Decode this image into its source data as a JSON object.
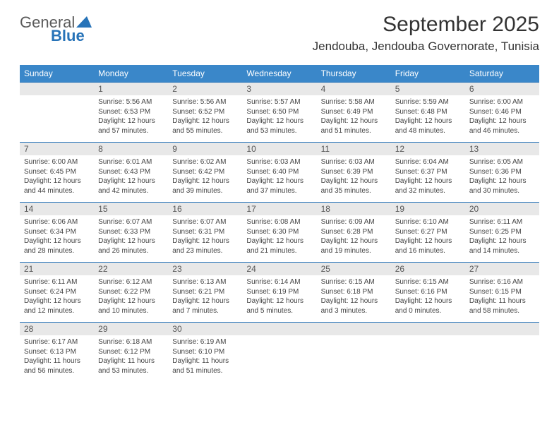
{
  "brand": {
    "word1": "General",
    "word2": "Blue"
  },
  "title": "September 2025",
  "location": "Jendouba, Jendouba Governorate, Tunisia",
  "colors": {
    "header_bg": "#3a87c9",
    "header_text": "#ffffff",
    "day_border": "#2773b8",
    "daynum_bg": "#e8e8e8",
    "body_text": "#444444",
    "title_text": "#333333"
  },
  "weekdays": [
    "Sunday",
    "Monday",
    "Tuesday",
    "Wednesday",
    "Thursday",
    "Friday",
    "Saturday"
  ],
  "weeks": [
    [
      null,
      {
        "n": "1",
        "sr": "Sunrise: 5:56 AM",
        "ss": "Sunset: 6:53 PM",
        "dl": "Daylight: 12 hours and 57 minutes."
      },
      {
        "n": "2",
        "sr": "Sunrise: 5:56 AM",
        "ss": "Sunset: 6:52 PM",
        "dl": "Daylight: 12 hours and 55 minutes."
      },
      {
        "n": "3",
        "sr": "Sunrise: 5:57 AM",
        "ss": "Sunset: 6:50 PM",
        "dl": "Daylight: 12 hours and 53 minutes."
      },
      {
        "n": "4",
        "sr": "Sunrise: 5:58 AM",
        "ss": "Sunset: 6:49 PM",
        "dl": "Daylight: 12 hours and 51 minutes."
      },
      {
        "n": "5",
        "sr": "Sunrise: 5:59 AM",
        "ss": "Sunset: 6:48 PM",
        "dl": "Daylight: 12 hours and 48 minutes."
      },
      {
        "n": "6",
        "sr": "Sunrise: 6:00 AM",
        "ss": "Sunset: 6:46 PM",
        "dl": "Daylight: 12 hours and 46 minutes."
      }
    ],
    [
      {
        "n": "7",
        "sr": "Sunrise: 6:00 AM",
        "ss": "Sunset: 6:45 PM",
        "dl": "Daylight: 12 hours and 44 minutes."
      },
      {
        "n": "8",
        "sr": "Sunrise: 6:01 AM",
        "ss": "Sunset: 6:43 PM",
        "dl": "Daylight: 12 hours and 42 minutes."
      },
      {
        "n": "9",
        "sr": "Sunrise: 6:02 AM",
        "ss": "Sunset: 6:42 PM",
        "dl": "Daylight: 12 hours and 39 minutes."
      },
      {
        "n": "10",
        "sr": "Sunrise: 6:03 AM",
        "ss": "Sunset: 6:40 PM",
        "dl": "Daylight: 12 hours and 37 minutes."
      },
      {
        "n": "11",
        "sr": "Sunrise: 6:03 AM",
        "ss": "Sunset: 6:39 PM",
        "dl": "Daylight: 12 hours and 35 minutes."
      },
      {
        "n": "12",
        "sr": "Sunrise: 6:04 AM",
        "ss": "Sunset: 6:37 PM",
        "dl": "Daylight: 12 hours and 32 minutes."
      },
      {
        "n": "13",
        "sr": "Sunrise: 6:05 AM",
        "ss": "Sunset: 6:36 PM",
        "dl": "Daylight: 12 hours and 30 minutes."
      }
    ],
    [
      {
        "n": "14",
        "sr": "Sunrise: 6:06 AM",
        "ss": "Sunset: 6:34 PM",
        "dl": "Daylight: 12 hours and 28 minutes."
      },
      {
        "n": "15",
        "sr": "Sunrise: 6:07 AM",
        "ss": "Sunset: 6:33 PM",
        "dl": "Daylight: 12 hours and 26 minutes."
      },
      {
        "n": "16",
        "sr": "Sunrise: 6:07 AM",
        "ss": "Sunset: 6:31 PM",
        "dl": "Daylight: 12 hours and 23 minutes."
      },
      {
        "n": "17",
        "sr": "Sunrise: 6:08 AM",
        "ss": "Sunset: 6:30 PM",
        "dl": "Daylight: 12 hours and 21 minutes."
      },
      {
        "n": "18",
        "sr": "Sunrise: 6:09 AM",
        "ss": "Sunset: 6:28 PM",
        "dl": "Daylight: 12 hours and 19 minutes."
      },
      {
        "n": "19",
        "sr": "Sunrise: 6:10 AM",
        "ss": "Sunset: 6:27 PM",
        "dl": "Daylight: 12 hours and 16 minutes."
      },
      {
        "n": "20",
        "sr": "Sunrise: 6:11 AM",
        "ss": "Sunset: 6:25 PM",
        "dl": "Daylight: 12 hours and 14 minutes."
      }
    ],
    [
      {
        "n": "21",
        "sr": "Sunrise: 6:11 AM",
        "ss": "Sunset: 6:24 PM",
        "dl": "Daylight: 12 hours and 12 minutes."
      },
      {
        "n": "22",
        "sr": "Sunrise: 6:12 AM",
        "ss": "Sunset: 6:22 PM",
        "dl": "Daylight: 12 hours and 10 minutes."
      },
      {
        "n": "23",
        "sr": "Sunrise: 6:13 AM",
        "ss": "Sunset: 6:21 PM",
        "dl": "Daylight: 12 hours and 7 minutes."
      },
      {
        "n": "24",
        "sr": "Sunrise: 6:14 AM",
        "ss": "Sunset: 6:19 PM",
        "dl": "Daylight: 12 hours and 5 minutes."
      },
      {
        "n": "25",
        "sr": "Sunrise: 6:15 AM",
        "ss": "Sunset: 6:18 PM",
        "dl": "Daylight: 12 hours and 3 minutes."
      },
      {
        "n": "26",
        "sr": "Sunrise: 6:15 AM",
        "ss": "Sunset: 6:16 PM",
        "dl": "Daylight: 12 hours and 0 minutes."
      },
      {
        "n": "27",
        "sr": "Sunrise: 6:16 AM",
        "ss": "Sunset: 6:15 PM",
        "dl": "Daylight: 11 hours and 58 minutes."
      }
    ],
    [
      {
        "n": "28",
        "sr": "Sunrise: 6:17 AM",
        "ss": "Sunset: 6:13 PM",
        "dl": "Daylight: 11 hours and 56 minutes."
      },
      {
        "n": "29",
        "sr": "Sunrise: 6:18 AM",
        "ss": "Sunset: 6:12 PM",
        "dl": "Daylight: 11 hours and 53 minutes."
      },
      {
        "n": "30",
        "sr": "Sunrise: 6:19 AM",
        "ss": "Sunset: 6:10 PM",
        "dl": "Daylight: 11 hours and 51 minutes."
      },
      null,
      null,
      null,
      null
    ]
  ]
}
